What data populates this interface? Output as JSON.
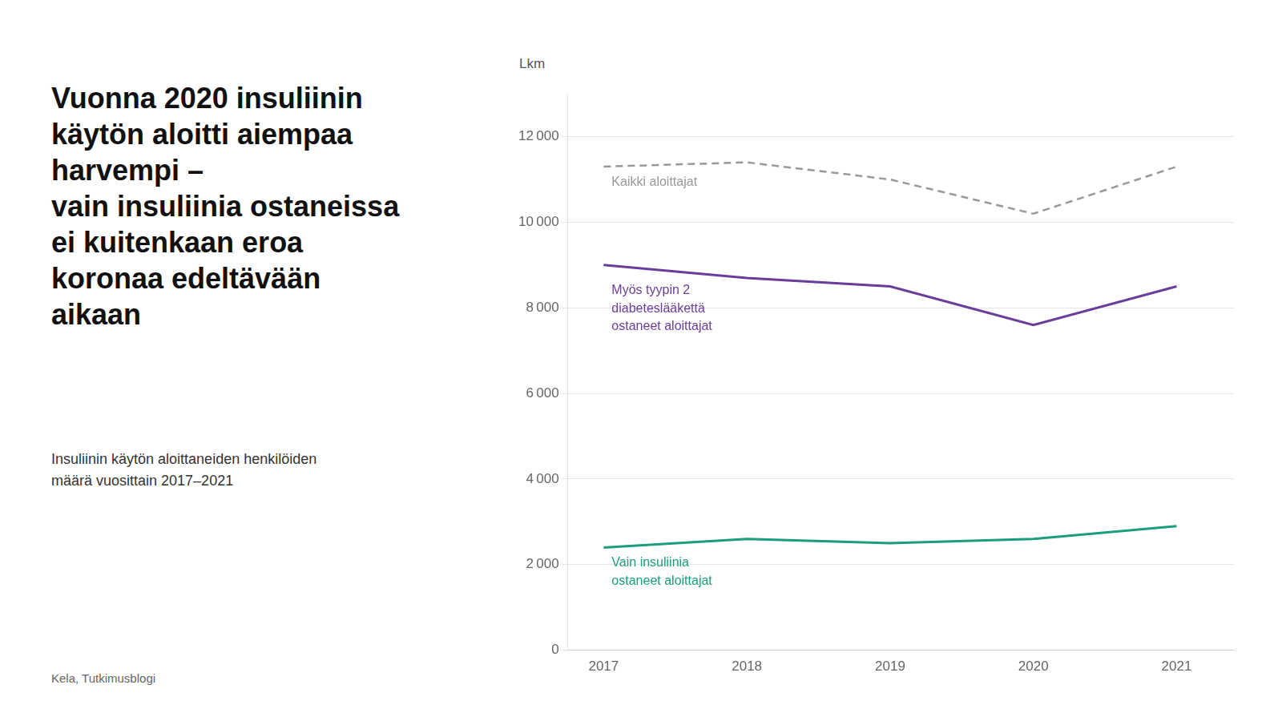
{
  "chart_data": {
    "type": "line",
    "title": "Vuonna 2020 insuliinin\nkäytön aloitti aiempaa\nharvempi –\nvain insuliinia ostaneissa\nei kuitenkaan eroa\nkoronaa edeltävään\naikaan",
    "subtitle": "Insuliinin käytön aloittaneiden henkilöiden\nmäärä vuosittain 2017–2021",
    "source": "Kela, Tutkimusblogi",
    "ylabel": "Lkm",
    "x": [
      2017,
      2018,
      2019,
      2020,
      2021
    ],
    "series": [
      {
        "name": "Kaikki aloittajat",
        "color": "#999999",
        "line_style": "dashed",
        "values": [
          11300,
          11400,
          11000,
          10200,
          11300
        ]
      },
      {
        "name": "Myös tyypin 2\ndiabeteslääkettä\nostaneet aloittajat",
        "color": "#6a3d9a",
        "line_style": "solid",
        "values": [
          9000,
          8700,
          8500,
          7600,
          8500
        ]
      },
      {
        "name": "Vain insuliinia\nostaneet aloittajat",
        "color": "#1a9e7c",
        "line_style": "solid",
        "values": [
          2400,
          2600,
          2500,
          2600,
          2900
        ]
      }
    ],
    "xlim": [
      2016.75,
      2021.4
    ],
    "xticks": [
      2017,
      2018,
      2019,
      2020,
      2021
    ],
    "ylim": [
      0,
      13000
    ],
    "yticks": [
      0,
      {
        "value": 2000,
        "label": "2 000"
      },
      {
        "value": 4000,
        "label": "4 000"
      },
      {
        "value": 6000,
        "label": "6 000"
      },
      {
        "value": 8000,
        "label": "8 000"
      },
      {
        "value": 10000,
        "label": "10 000"
      },
      {
        "value": 12000,
        "label": "12 000"
      }
    ],
    "grid": "y"
  }
}
